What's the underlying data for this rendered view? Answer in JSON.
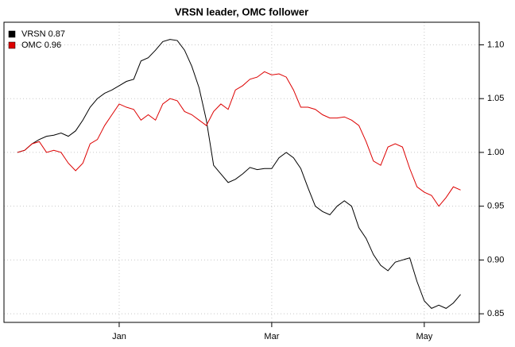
{
  "chart_data": {
    "type": "line",
    "title": "VRSN leader, OMC follower",
    "categories": [
      null,
      null,
      null,
      null,
      null,
      null,
      null,
      null,
      null,
      null,
      null,
      null,
      null,
      null,
      "Jan",
      null,
      null,
      null,
      null,
      null,
      null,
      null,
      null,
      null,
      null,
      null,
      null,
      null,
      null,
      null,
      null,
      null,
      null,
      null,
      null,
      "Mar",
      null,
      null,
      null,
      null,
      null,
      null,
      null,
      null,
      null,
      null,
      null,
      null,
      null,
      null,
      null,
      null,
      null,
      null,
      null,
      null,
      "May",
      null,
      null,
      null,
      null,
      null
    ],
    "series": [
      {
        "name": "VRSN 0.87",
        "color": "#000000",
        "values": [
          1.0,
          1.002,
          1.008,
          1.012,
          1.015,
          1.016,
          1.018,
          1.015,
          1.02,
          1.03,
          1.042,
          1.05,
          1.055,
          1.058,
          1.062,
          1.066,
          1.068,
          1.085,
          1.088,
          1.095,
          1.103,
          1.105,
          1.104,
          1.095,
          1.08,
          1.06,
          1.03,
          0.988,
          0.98,
          0.972,
          0.975,
          0.98,
          0.986,
          0.984,
          0.985,
          0.985,
          0.995,
          1.0,
          0.995,
          0.985,
          0.967,
          0.95,
          0.945,
          0.942,
          0.95,
          0.955,
          0.95,
          0.93,
          0.92,
          0.905,
          0.895,
          0.89,
          0.898,
          0.9,
          0.902,
          0.88,
          0.862,
          0.855,
          0.858,
          0.855,
          0.86,
          0.868
        ]
      },
      {
        "name": "OMC 0.96",
        "color": "#dd0000",
        "values": [
          1.0,
          1.002,
          1.008,
          1.01,
          1.0,
          1.002,
          1.0,
          0.99,
          0.983,
          0.99,
          1.008,
          1.012,
          1.025,
          1.035,
          1.045,
          1.042,
          1.04,
          1.03,
          1.035,
          1.03,
          1.045,
          1.05,
          1.048,
          1.038,
          1.035,
          1.03,
          1.025,
          1.038,
          1.045,
          1.04,
          1.058,
          1.062,
          1.068,
          1.07,
          1.075,
          1.072,
          1.073,
          1.07,
          1.058,
          1.042,
          1.042,
          1.04,
          1.035,
          1.032,
          1.032,
          1.033,
          1.03,
          1.025,
          1.01,
          0.992,
          0.988,
          1.005,
          1.008,
          1.005,
          0.985,
          0.968,
          0.963,
          0.96,
          0.95,
          0.958,
          0.968,
          0.965
        ]
      }
    ],
    "ylim": [
      0.842,
      1.121
    ],
    "yticks": [
      0.85,
      {
        "value": 0.9,
        "label": "0.90"
      },
      0.95,
      {
        "value": 1,
        "label": "1.00"
      },
      1.05,
      {
        "value": 1.1,
        "label": "1.10"
      }
    ],
    "grid": true,
    "legend": "top-left"
  }
}
